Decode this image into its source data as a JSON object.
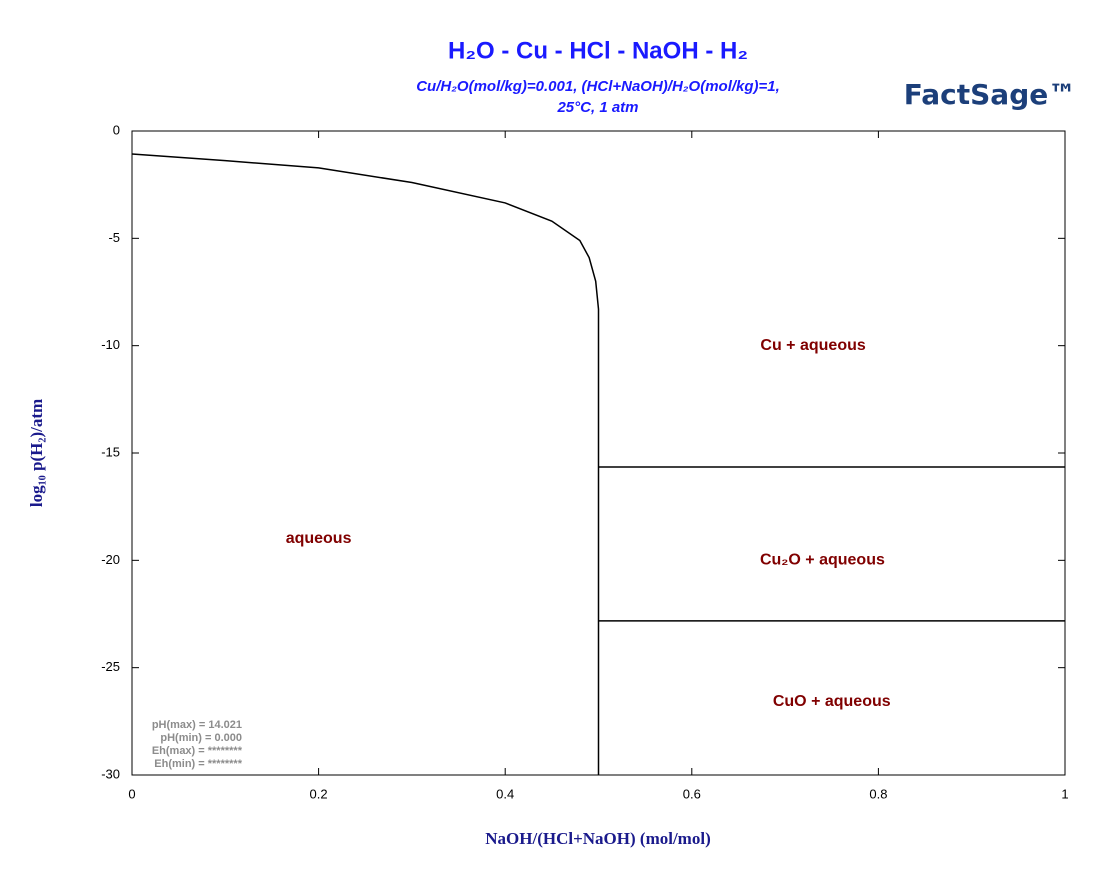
{
  "chart_data": {
    "type": "phase_diagram",
    "title": "H₂O - Cu - HCl - NaOH - H₂",
    "subtitle": [
      "Cu/H₂O(mol/kg)=0.001, (HCl+NaOH)/H₂O(mol/kg)=1,",
      "25°C, 1 atm"
    ],
    "logo": "FactSage™",
    "x_label": "NaOH/(HCl+NaOH) (mol/mol)",
    "y_label": "log₁₀ p(H₂)/atm",
    "xlim": [
      0,
      1
    ],
    "ylim": [
      -30,
      0
    ],
    "xticks": [
      0,
      0.2,
      0.4,
      0.6,
      0.8,
      1
    ],
    "yticks": [
      0,
      -5,
      -10,
      -15,
      -20,
      -25,
      -30
    ],
    "line_color": "#000000",
    "boundaries": [
      {
        "x": [
          0,
          0.1,
          0.2,
          0.3,
          0.4,
          0.45,
          0.48,
          0.49,
          0.497,
          0.5,
          0.5
        ],
        "y": [
          -1.07,
          -1.38,
          -1.72,
          -2.4,
          -3.35,
          -4.2,
          -5.1,
          -5.9,
          -7.0,
          -8.3,
          -30
        ]
      },
      {
        "x": [
          0.5,
          1
        ],
        "y": [
          -15.65,
          -15.65
        ]
      },
      {
        "x": [
          0.5,
          1
        ],
        "y": [
          -22.82,
          -22.82
        ]
      }
    ],
    "region_labels": [
      {
        "text": "aqueous",
        "x": 0.2,
        "y": -19
      },
      {
        "text": "Cu + aqueous",
        "x": 0.73,
        "y": -10
      },
      {
        "text": "Cu₂O + aqueous",
        "x": 0.74,
        "y": -20
      },
      {
        "text": "CuO + aqueous",
        "x": 0.75,
        "y": -26.6
      }
    ],
    "notes": [
      "pH(max)  = 14.021",
      "pH(min)  = 0.000",
      "Eh(max)  = ********",
      "Eh(min)  = ********"
    ]
  }
}
